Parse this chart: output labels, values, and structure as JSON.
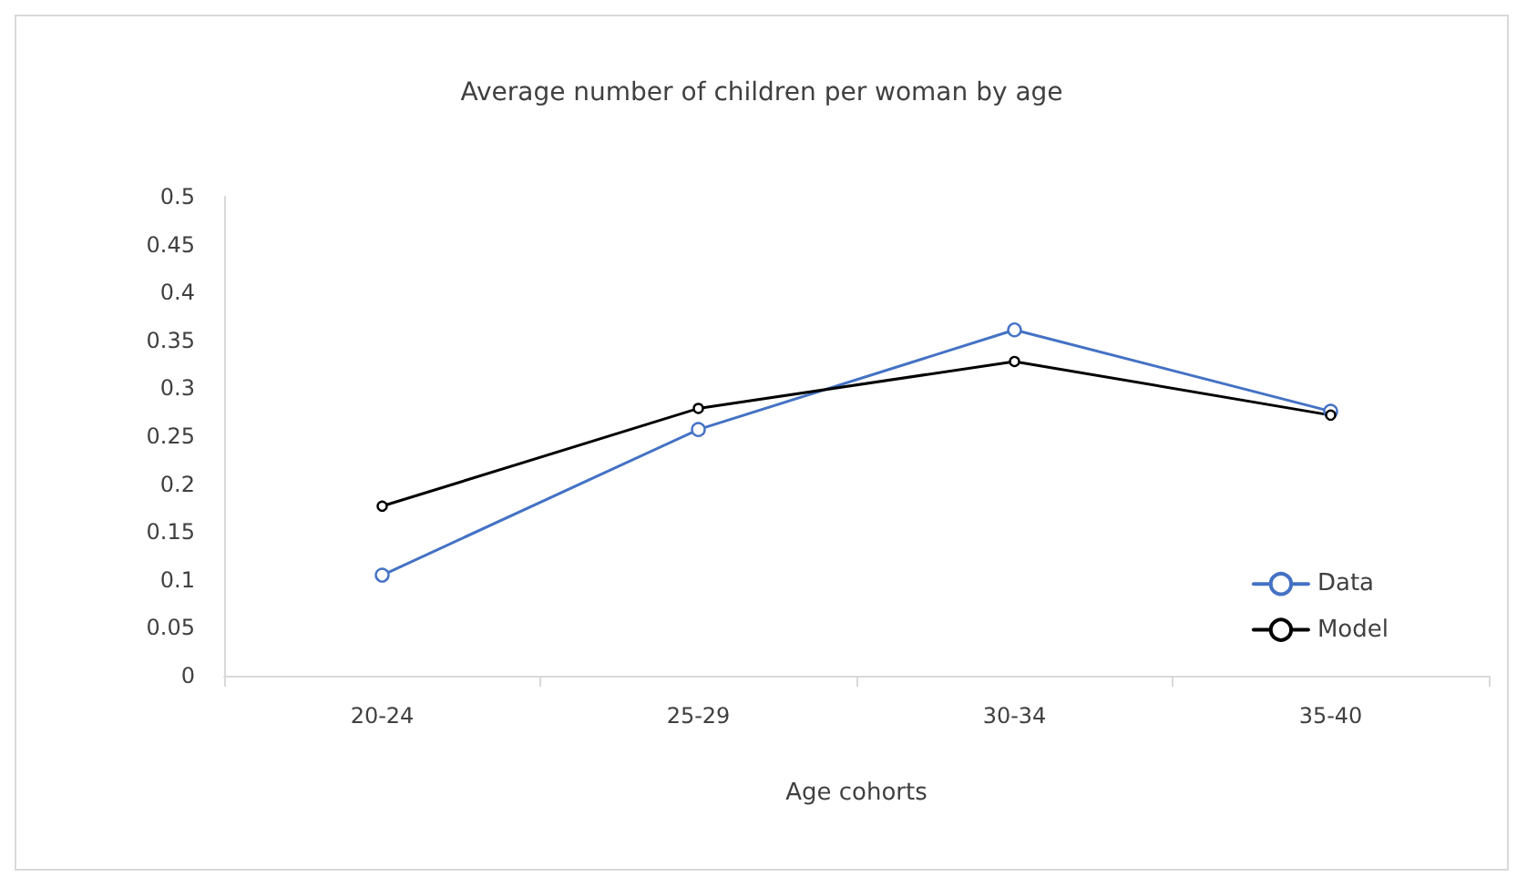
{
  "chart_data": {
    "type": "line",
    "title": "Average number of children per woman by age",
    "xlabel": "Age cohorts",
    "categories": [
      "20-24",
      "25-29",
      "30-34",
      "35-40"
    ],
    "series": [
      {
        "name": "Data",
        "color": "#4472c4",
        "values": [
          0.105,
          0.257,
          0.361,
          0.276
        ]
      },
      {
        "name": "Model",
        "color": "#000000",
        "values": [
          0.177,
          0.279,
          0.328,
          0.272
        ]
      }
    ],
    "ylim": [
      0,
      0.5
    ],
    "yticks": [
      0,
      0.05,
      0.1,
      0.15,
      0.2,
      0.25,
      0.3,
      0.35,
      0.4,
      0.45,
      0.5
    ],
    "grid": false,
    "legend": "right",
    "marker": "circle",
    "line_style": "solid"
  }
}
